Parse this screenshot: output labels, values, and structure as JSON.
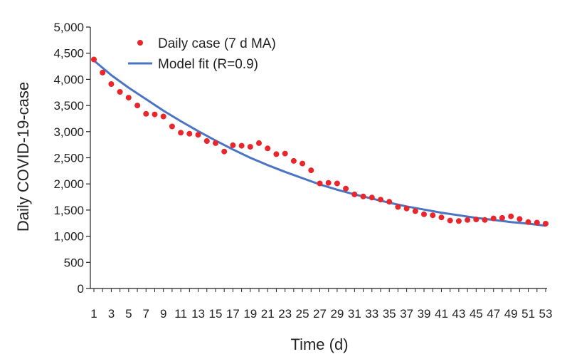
{
  "chart_data": {
    "type": "scatter",
    "title": "",
    "xlabel": "Time (d)",
    "ylabel": "Daily COVID-19-case",
    "xlim": [
      1,
      53
    ],
    "ylim": [
      0,
      5000
    ],
    "x_ticks": [
      "1",
      "3",
      "5",
      "7",
      "9",
      "11",
      "13",
      "15",
      "17",
      "19",
      "21",
      "23",
      "25",
      "27",
      "29",
      "31",
      "33",
      "35",
      "37",
      "39",
      "41",
      "43",
      "45",
      "47",
      "49",
      "51",
      "53"
    ],
    "y_ticks": [
      "0",
      "500",
      "1,000",
      "1,500",
      "2,000",
      "2,500",
      "3,000",
      "3,500",
      "4,000",
      "4,500",
      "5,000"
    ],
    "y_tick_values": [
      0,
      500,
      1000,
      1500,
      2000,
      2500,
      3000,
      3500,
      4000,
      4500,
      5000
    ],
    "legend_position": "top-left",
    "series": [
      {
        "name": "Daily case (7 d MA)",
        "kind": "scatter",
        "color": "#e8262b",
        "x": [
          1,
          2,
          3,
          4,
          5,
          6,
          7,
          8,
          9,
          10,
          11,
          12,
          13,
          14,
          15,
          16,
          17,
          18,
          19,
          20,
          21,
          22,
          23,
          24,
          25,
          26,
          27,
          28,
          29,
          30,
          31,
          32,
          33,
          34,
          35,
          36,
          37,
          38,
          39,
          40,
          41,
          42,
          43,
          44,
          45,
          46,
          47,
          48,
          49,
          50,
          51,
          52,
          53
        ],
        "values": [
          4380,
          4130,
          3910,
          3760,
          3650,
          3500,
          3340,
          3330,
          3290,
          3100,
          2980,
          2960,
          2940,
          2820,
          2780,
          2620,
          2740,
          2730,
          2710,
          2780,
          2680,
          2570,
          2580,
          2440,
          2390,
          2260,
          2010,
          2020,
          2010,
          1910,
          1800,
          1760,
          1740,
          1700,
          1660,
          1560,
          1530,
          1480,
          1420,
          1400,
          1360,
          1300,
          1290,
          1310,
          1320,
          1310,
          1340,
          1350,
          1380,
          1330,
          1270,
          1260,
          1240
        ]
      },
      {
        "name": "Model fit (R=0.9)",
        "kind": "line",
        "color": "#4a74c4",
        "x": [
          1,
          3,
          5,
          7,
          9,
          11,
          13,
          15,
          17,
          19,
          21,
          23,
          25,
          27,
          29,
          31,
          33,
          35,
          37,
          39,
          41,
          43,
          45,
          47,
          49,
          51,
          53
        ],
        "values": [
          4360,
          4080,
          3840,
          3620,
          3400,
          3200,
          3010,
          2830,
          2660,
          2500,
          2360,
          2230,
          2110,
          1990,
          1890,
          1800,
          1720,
          1640,
          1570,
          1510,
          1450,
          1400,
          1350,
          1310,
          1270,
          1240,
          1200
        ]
      }
    ]
  }
}
